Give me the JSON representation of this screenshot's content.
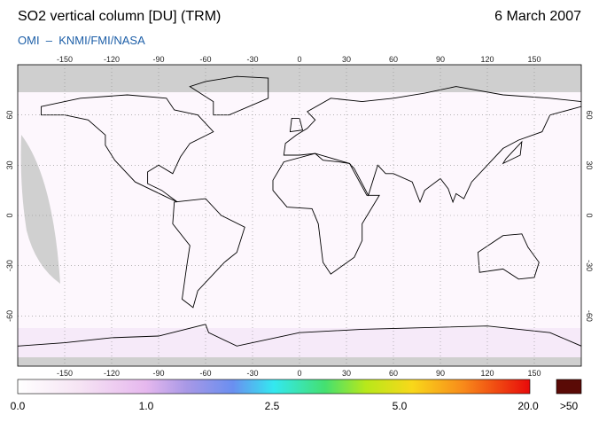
{
  "header": {
    "title": "SO2 vertical column [DU] (TRM)",
    "date": "6 March 2007",
    "credit": "OMI  –  KNMI/FMI/NASA"
  },
  "map": {
    "lon_labels": [
      -150,
      -120,
      -90,
      -60,
      -30,
      0,
      30,
      60,
      90,
      120,
      150
    ],
    "lat_labels": [
      60,
      30,
      0,
      -30,
      -60
    ]
  },
  "legend": {
    "labels": [
      "0.0",
      "1.0",
      "2.5",
      "5.0",
      "20.0",
      ">50"
    ]
  }
}
